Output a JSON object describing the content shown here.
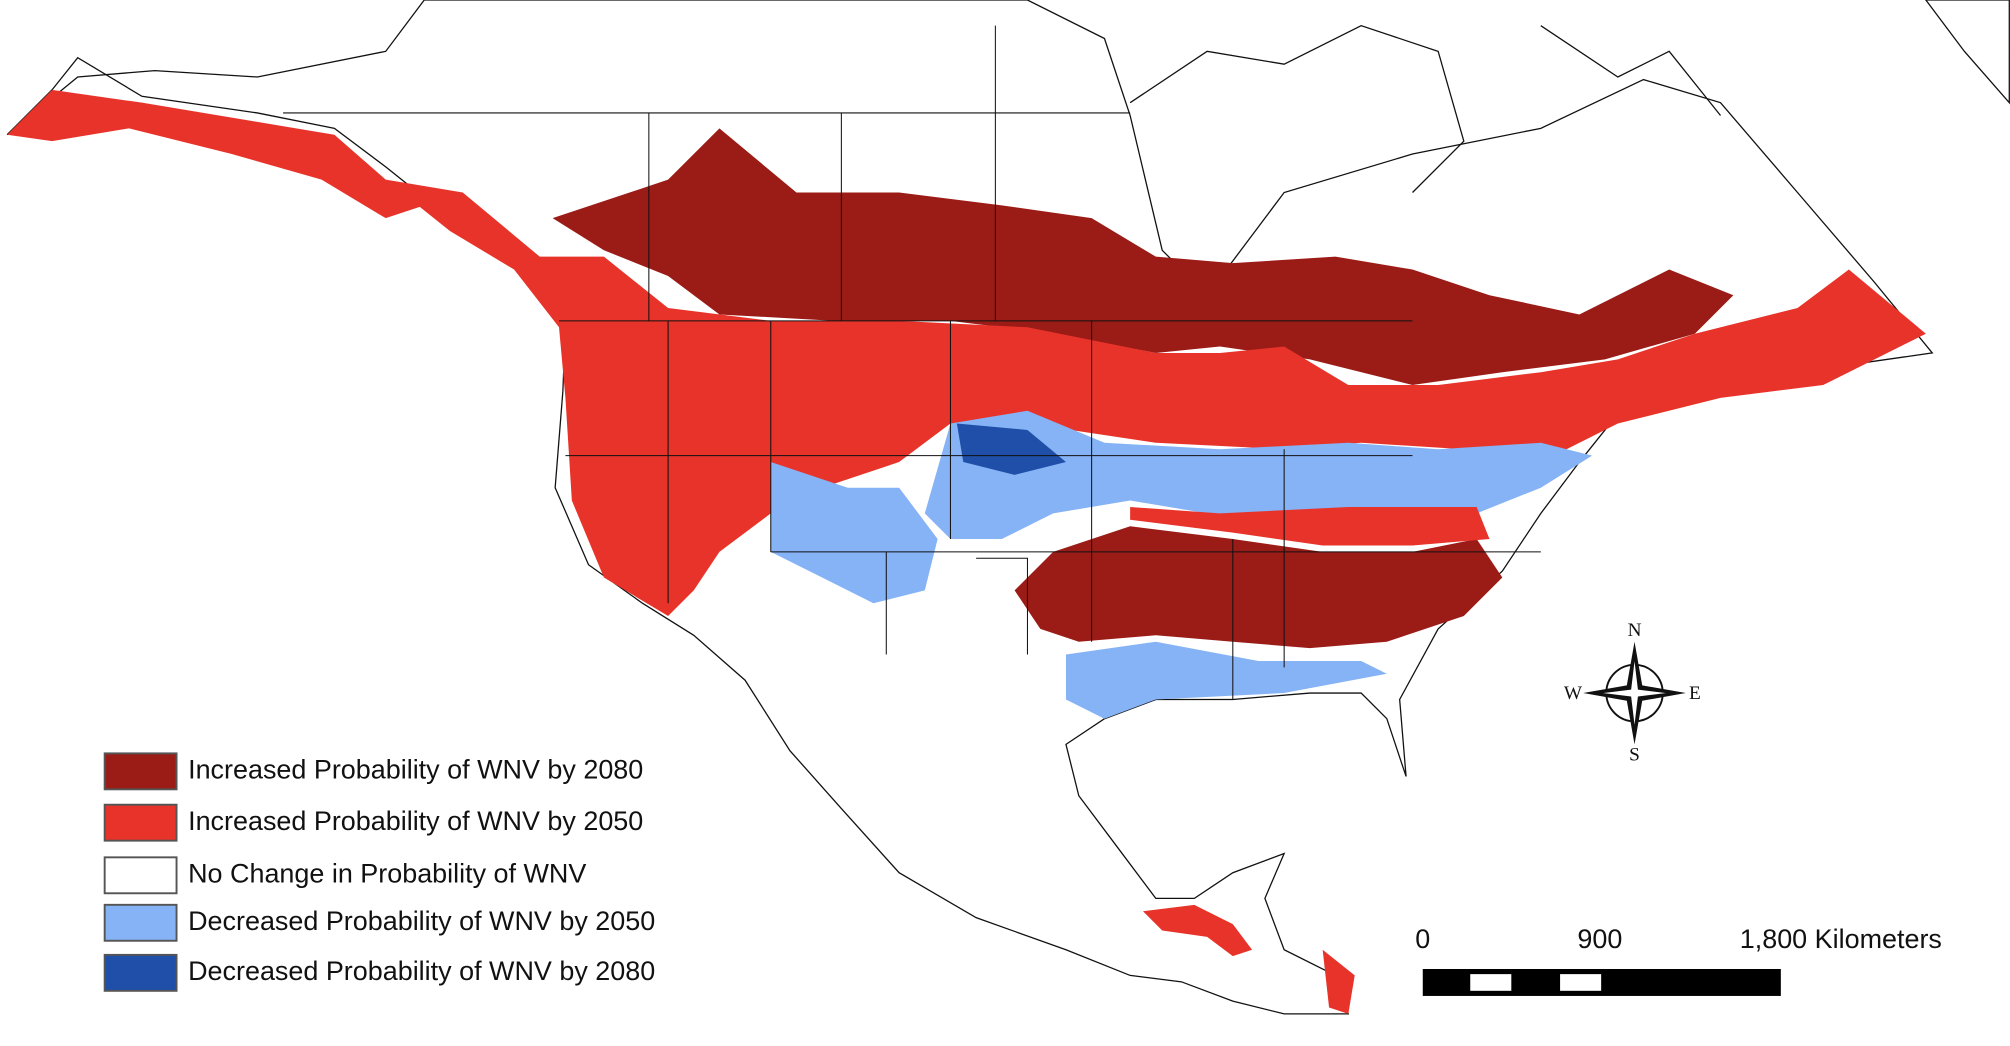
{
  "legend": [
    {
      "label": "Increased Probability of WNV by 2080",
      "color": "#9b1c17"
    },
    {
      "label": "Increased Probability of WNV by 2050",
      "color": "#e8332a"
    },
    {
      "label": "No Change in Probability of WNV",
      "color": "#ffffff"
    },
    {
      "label": "Decreased Probability of WNV by 2050",
      "color": "#86b3f5"
    },
    {
      "label": "Decreased Probability of WNV by 2080",
      "color": "#1f4fa8"
    }
  ],
  "scale_bar": {
    "labels": [
      "0",
      "900",
      "1,800 Kilometers"
    ]
  },
  "compass": {
    "north": "N",
    "south": "S",
    "east": "E",
    "west": "W"
  }
}
